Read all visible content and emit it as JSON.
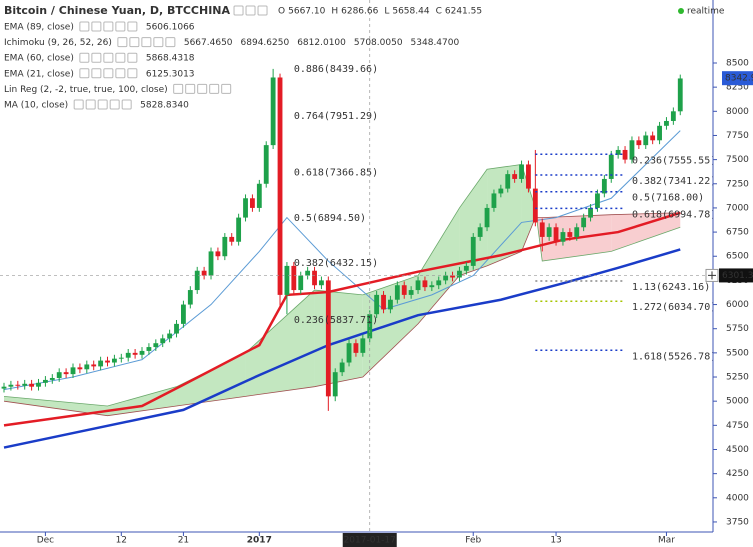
{
  "chart_data": {
    "type": "candlestick",
    "title": "Bitcoin / Chinese Yuan, D, BTCCHINA",
    "ohlc_header": [
      {
        "key": "O",
        "value": "5667.10"
      },
      {
        "key": "H",
        "value": "6286.66"
      },
      {
        "key": "L",
        "value": "5658.44"
      },
      {
        "key": "C",
        "value": "6241.55"
      }
    ],
    "status": "realtime",
    "indicators": [
      {
        "name": "EMA (89, close)",
        "color": "#333333",
        "values": [
          {
            "text": "5606.1066",
            "color": "#333333"
          }
        ]
      },
      {
        "name": "Ichimoku (9, 26, 52, 26)",
        "color": "#333333",
        "values": [
          {
            "text": "5667.4650",
            "color": "#2196f3"
          },
          {
            "text": "6894.6250",
            "color": "#8b1a1a"
          },
          {
            "text": "6812.0100",
            "color": "#4caf50"
          },
          {
            "text": "5708.0050",
            "color": "#2e7d32"
          },
          {
            "text": "5348.4700",
            "color": "#c62828"
          }
        ]
      },
      {
        "name": "EMA (60, close)",
        "color": "#333333",
        "values": [
          {
            "text": "5868.4318",
            "color": "#e31c25"
          }
        ]
      },
      {
        "name": "EMA (21, close)",
        "color": "#333333",
        "values": [
          {
            "text": "6125.3013",
            "color": "#333333"
          }
        ]
      },
      {
        "name": "Lin Reg (2, -2, true, true, 100, close)",
        "color": "#b0b0b0",
        "values": []
      },
      {
        "name": "MA (10, close)",
        "color": "#333333",
        "values": [
          {
            "text": "5828.8340",
            "color": "#1e3fa8"
          }
        ]
      }
    ],
    "up_color": "#1ea14a",
    "down_color": "#e31c25",
    "open": [
      5130,
      5150,
      5170,
      5160,
      5180,
      5150,
      5190,
      5220,
      5240,
      5300,
      5280,
      5350,
      5330,
      5380,
      5360,
      5420,
      5400,
      5440,
      5450,
      5500,
      5480,
      5520,
      5560,
      5600,
      5650,
      5700,
      5800,
      6000,
      6150,
      6350,
      6300,
      6550,
      6500,
      6700,
      6650,
      6900,
      7100,
      7000,
      7250,
      7650,
      8350,
      6100,
      6400,
      6150,
      6300,
      6350,
      6200,
      6250,
      5050,
      5300,
      5400,
      5600,
      5500,
      5650,
      5900,
      6100,
      5950,
      6050,
      6200,
      6100,
      6150,
      6250,
      6180,
      6200,
      6250,
      6300,
      6280,
      6350,
      6400,
      6700,
      6800,
      7000,
      7150,
      7200,
      7350,
      7300,
      7450,
      7200,
      6850,
      6700,
      6800,
      6650,
      6750,
      6700,
      6800,
      6900,
      7000,
      7150,
      7300,
      7550,
      7600,
      7500,
      7700,
      7650,
      7750,
      7700,
      7850,
      7900,
      8000
    ],
    "high": [
      5190,
      5210,
      5210,
      5220,
      5220,
      5230,
      5260,
      5280,
      5340,
      5340,
      5390,
      5390,
      5420,
      5420,
      5460,
      5460,
      5480,
      5490,
      5540,
      5540,
      5560,
      5600,
      5640,
      5690,
      5740,
      5840,
      6040,
      6190,
      6390,
      6390,
      6590,
      6590,
      6740,
      6740,
      6940,
      7140,
      7140,
      7290,
      7690,
      8439,
      8390,
      6440,
      6440,
      6340,
      6390,
      6390,
      6290,
      6290,
      5340,
      5440,
      5640,
      5640,
      5690,
      5940,
      6140,
      6140,
      6090,
      6240,
      6240,
      6190,
      6290,
      6290,
      6240,
      6290,
      6340,
      6340,
      6390,
      6440,
      6740,
      6840,
      7040,
      7190,
      7240,
      7390,
      7390,
      7490,
      7490,
      7600,
      6890,
      6840,
      6840,
      6790,
      6790,
      6840,
      6940,
      7040,
      7190,
      7340,
      7590,
      7640,
      7640,
      7740,
      7740,
      7790,
      7790,
      7890,
      7940,
      8040,
      8380
    ],
    "low": [
      5090,
      5110,
      5120,
      5120,
      5110,
      5110,
      5150,
      5180,
      5200,
      5240,
      5240,
      5290,
      5290,
      5320,
      5320,
      5360,
      5360,
      5400,
      5410,
      5440,
      5440,
      5480,
      5520,
      5560,
      5610,
      5660,
      5760,
      5960,
      6110,
      6260,
      6260,
      6460,
      6460,
      6610,
      6610,
      6860,
      6960,
      6960,
      7210,
      7610,
      5950,
      5900,
      6110,
      6110,
      6260,
      6160,
      6160,
      4900,
      5000,
      5260,
      5360,
      5460,
      5460,
      5610,
      5860,
      5910,
      5910,
      6010,
      6060,
      6060,
      6110,
      6140,
      6140,
      6160,
      6210,
      6240,
      6240,
      6310,
      6360,
      6660,
      6760,
      6960,
      7110,
      7160,
      7260,
      7260,
      7160,
      6810,
      6550,
      6660,
      6610,
      6610,
      6660,
      6660,
      6760,
      6860,
      6960,
      7110,
      7260,
      7510,
      7460,
      7460,
      7610,
      7610,
      7660,
      7660,
      7810,
      7860,
      7960
    ],
    "close": [
      5150,
      5170,
      5160,
      5180,
      5150,
      5190,
      5220,
      5240,
      5300,
      5280,
      5350,
      5330,
      5380,
      5360,
      5420,
      5400,
      5440,
      5450,
      5500,
      5480,
      5520,
      5560,
      5600,
      5650,
      5700,
      5800,
      6000,
      6150,
      6350,
      6300,
      6550,
      6500,
      6700,
      6650,
      6900,
      7100,
      7000,
      7250,
      7650,
      8350,
      6100,
      6400,
      6150,
      6300,
      6350,
      6200,
      6250,
      5050,
      5300,
      5400,
      5600,
      5500,
      5650,
      5900,
      6100,
      5950,
      6050,
      6200,
      6100,
      6150,
      6250,
      6180,
      6200,
      6250,
      6300,
      6280,
      6350,
      6400,
      6700,
      6800,
      7000,
      7150,
      7200,
      7350,
      7300,
      7450,
      7200,
      6850,
      6700,
      6800,
      6650,
      6750,
      6700,
      6800,
      6900,
      7000,
      7150,
      7300,
      7550,
      7600,
      7500,
      7700,
      7650,
      7750,
      7700,
      7850,
      7900,
      8000,
      8340
    ],
    "cloud": {
      "x": [
        0,
        15,
        25,
        35,
        45,
        52,
        60,
        66,
        70,
        75,
        77,
        78,
        88,
        98
      ],
      "span_a": [
        5050,
        4950,
        5150,
        5500,
        6150,
        6100,
        6300,
        7000,
        7400,
        7450,
        7000,
        6450,
        6550,
        6800
      ],
      "span_b": [
        5000,
        4850,
        4950,
        5050,
        5150,
        5250,
        5800,
        6300,
        6400,
        6550,
        6900,
        6900,
        6930,
        6950
      ],
      "up_color": "#b9e3b5",
      "down_color": "#f7c6c8"
    },
    "lines": [
      {
        "color": "#5b9bd5",
        "width": 1,
        "x": [
          0,
          10,
          20,
          30,
          37,
          41,
          47,
          55,
          62,
          68,
          75,
          80,
          88,
          98
        ],
        "values": [
          5120,
          5250,
          5430,
          6000,
          6550,
          6900,
          6450,
          5950,
          6100,
          6300,
          6850,
          6900,
          7100,
          7800
        ]
      },
      {
        "color": "#e31c25",
        "width": 2.5,
        "x": [
          0,
          20,
          26,
          37,
          41,
          47,
          60,
          72,
          81,
          89,
          98
        ],
        "values": [
          4750,
          4950,
          5170,
          5580,
          6100,
          6130,
          6340,
          6510,
          6670,
          6750,
          6950
        ]
      },
      {
        "color": "#1a3cc8",
        "width": 2.5,
        "x": [
          0,
          26,
          37,
          47,
          60,
          72,
          81,
          89,
          98
        ],
        "values": [
          4520,
          4910,
          5270,
          5580,
          5890,
          6050,
          6220,
          6380,
          6570
        ]
      }
    ],
    "fib_left": [
      {
        "label": "0.886(8439.66)",
        "value": 8439.66
      },
      {
        "label": "0.764(7951.29)",
        "value": 7951.29
      },
      {
        "label": "0.618(7366.85)",
        "value": 7366.85
      },
      {
        "label": "0.5(6894.50)",
        "value": 6894.5
      },
      {
        "label": "0.382(6432.15)",
        "value": 6432.15
      },
      {
        "label": "0.236(5837.71)",
        "value": 5837.71
      }
    ],
    "fib_right": [
      {
        "label": "0.236(7555.55)",
        "value": 7555.55,
        "color": "#1a3cc8"
      },
      {
        "label": "0.382(7341.22)",
        "value": 7341.22,
        "color": "#1a3cc8"
      },
      {
        "label": "0.5(7168.00)",
        "value": 7168.0,
        "color": "#1a3cc8"
      },
      {
        "label": "0.618(6994.78)",
        "value": 6994.78,
        "color": "#1a3cc8"
      },
      {
        "label": "1.13(6243.16)",
        "value": 6243.16,
        "color": "#888888"
      },
      {
        "label": "1.272(6034.70)",
        "value": 6034.7,
        "color": "#a6c400"
      },
      {
        "label": "1.618(5526.78)",
        "value": 5526.78,
        "color": "#1a3cc8"
      }
    ],
    "last_price": 8342.9,
    "crosshair": {
      "x": 53,
      "x_label": "2017-01-17",
      "y": 6301.36
    },
    "xlim": [
      -0.58,
      102.6
    ],
    "ylim": [
      3646,
      9152
    ],
    "yticks": [
      3750,
      4000,
      4250,
      4500,
      4750,
      5000,
      5250,
      5500,
      5750,
      6000,
      6250,
      6500,
      6750,
      7000,
      7250,
      7500,
      7750,
      8000,
      8250,
      8500
    ],
    "xticks": [
      {
        "value": 6,
        "label": "Dec"
      },
      {
        "value": 17,
        "label": "12"
      },
      {
        "value": 26,
        "label": "21"
      },
      {
        "value": 37,
        "label": "2017"
      },
      {
        "value": 68,
        "label": "Feb"
      },
      {
        "value": 80,
        "label": "13"
      },
      {
        "value": 96,
        "label": "Mar"
      }
    ],
    "grid": false
  }
}
